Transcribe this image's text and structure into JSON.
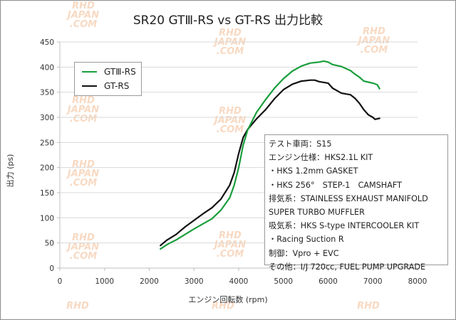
{
  "chart_data": {
    "type": "line",
    "title": "SR20 GTⅢ-RS vs GT-RS 出力比較",
    "xlabel": "エンジン回転数 (rpm)",
    "ylabel": "出力 (ps)",
    "xlim": [
      0,
      8000
    ],
    "ylim": [
      0,
      450
    ],
    "xticks": [
      "0",
      "1000",
      "2000",
      "3000",
      "4000",
      "5000",
      "6000",
      "7000",
      "8000"
    ],
    "yticks": [
      "0",
      "50",
      "100",
      "150",
      "200",
      "250",
      "300",
      "350",
      "400",
      "450"
    ],
    "grid": "horizontal",
    "legend_position": "top-left",
    "series": [
      {
        "name": "GTⅢ-RS",
        "color": "#1a9e3c",
        "x": [
          2250,
          2400,
          2600,
          2800,
          3000,
          3200,
          3400,
          3600,
          3800,
          3900,
          4000,
          4100,
          4200,
          4400,
          4600,
          4800,
          5000,
          5200,
          5400,
          5600,
          5800,
          5900,
          6000,
          6100,
          6300,
          6500,
          6600,
          6700,
          6800,
          6900,
          7000,
          7100,
          7150
        ],
        "y": [
          38,
          47,
          56,
          67,
          78,
          88,
          98,
          115,
          140,
          165,
          200,
          245,
          275,
          310,
          335,
          358,
          377,
          392,
          402,
          408,
          410,
          412,
          410,
          405,
          401,
          393,
          386,
          380,
          372,
          370,
          368,
          365,
          357
        ]
      },
      {
        "name": "GT-RS",
        "color": "#111111",
        "x": [
          2250,
          2400,
          2600,
          2800,
          3000,
          3200,
          3400,
          3600,
          3800,
          3900,
          4000,
          4100,
          4200,
          4400,
          4600,
          4800,
          5000,
          5200,
          5400,
          5600,
          5700,
          5800,
          6000,
          6100,
          6300,
          6500,
          6600,
          6700,
          6800,
          6900,
          7000,
          7050,
          7150
        ],
        "y": [
          45,
          56,
          67,
          82,
          95,
          108,
          120,
          137,
          165,
          190,
          228,
          260,
          276,
          297,
          315,
          337,
          355,
          366,
          372,
          374,
          374,
          371,
          368,
          358,
          348,
          345,
          338,
          328,
          315,
          305,
          300,
          296,
          298
        ]
      }
    ]
  },
  "notes": [
    "テスト車両：S15",
    "エンジン仕様：HKS2.1L KIT",
    "・HKS 1.2mm GASKET",
    "・HKS 256°　STEP-1　CAMSHAFT",
    "排気系：STAINLESS EXHAUST MANIFOLD",
    "SUPER TURBO MUFFLER",
    "吸気系：HKS S-type INTERCOOLER KIT",
    "・Racing Suction R",
    "制御：Vpro + EVC",
    "その他：I/J 720cc, FUEL PUMP UPGRADE"
  ],
  "watermark": [
    "RHD",
    "JAPAN",
    ".COM"
  ]
}
